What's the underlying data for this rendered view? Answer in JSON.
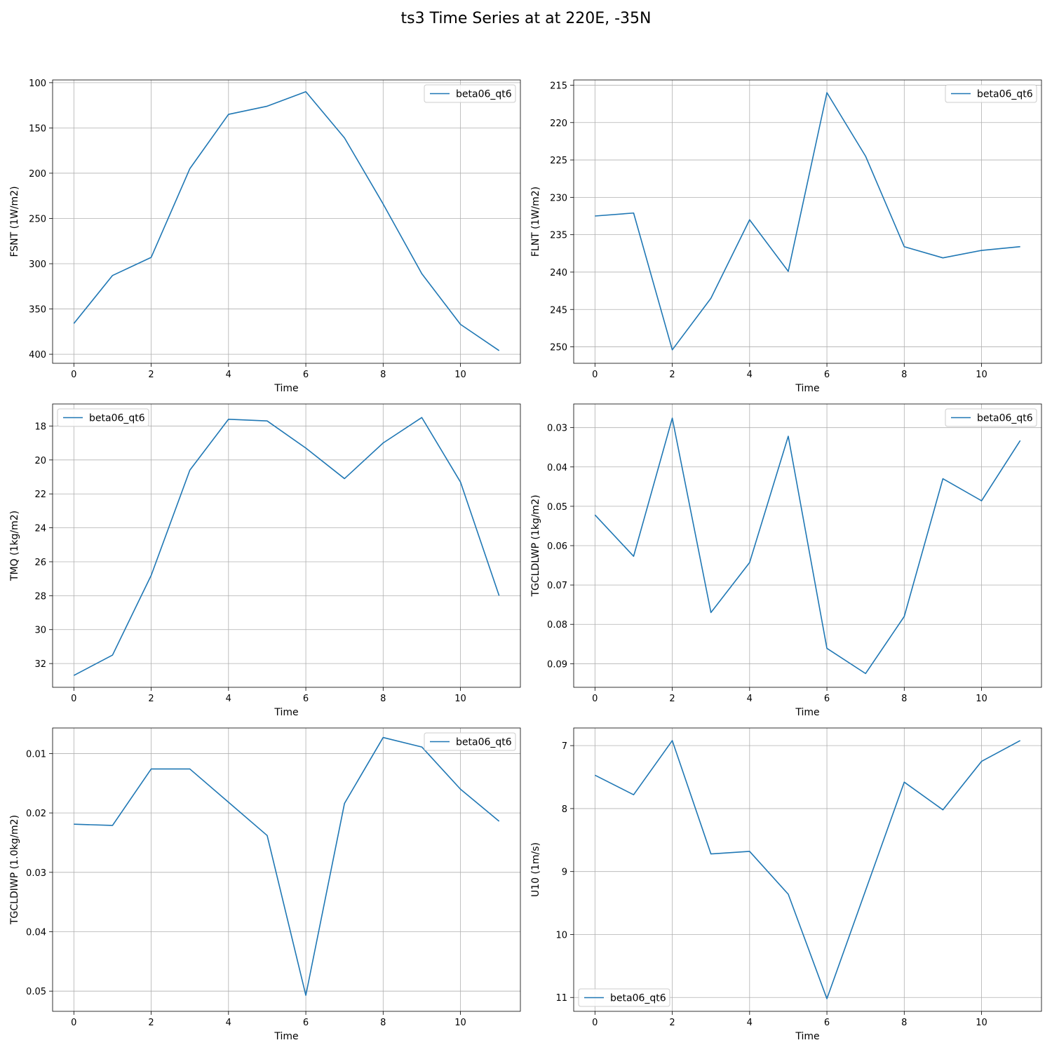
{
  "figure": {
    "title": "ts3 Time Series at at 220E, -35N"
  },
  "chart_data": [
    {
      "type": "line",
      "xlabel": "Time",
      "ylabel": "FSNT (1W/m2)",
      "x": [
        0,
        1,
        2,
        3,
        4,
        5,
        6,
        7,
        8,
        9,
        10,
        11
      ],
      "xticks": [
        0,
        2,
        4,
        6,
        8,
        10
      ],
      "xlim": [
        -0.55,
        11.55
      ],
      "yticks": [
        100,
        150,
        200,
        250,
        300,
        350,
        400
      ],
      "ylim": [
        97,
        410
      ],
      "y_inverted": true,
      "grid": true,
      "legend_loc": "upper right",
      "series": [
        {
          "name": "beta06_qt6",
          "color": "#1f77b4",
          "values": [
            366,
            313,
            293,
            195,
            135,
            126,
            110,
            161,
            234,
            311,
            367,
            396
          ]
        }
      ]
    },
    {
      "type": "line",
      "xlabel": "Time",
      "ylabel": "FLNT (1W/m2)",
      "x": [
        0,
        1,
        2,
        3,
        4,
        5,
        6,
        7,
        8,
        9,
        10,
        11
      ],
      "xticks": [
        0,
        2,
        4,
        6,
        8,
        10
      ],
      "xlim": [
        -0.55,
        11.55
      ],
      "yticks": [
        215,
        220,
        225,
        230,
        235,
        240,
        245,
        250
      ],
      "ylim": [
        214.3,
        252.2
      ],
      "y_inverted": true,
      "grid": true,
      "legend_loc": "upper right",
      "series": [
        {
          "name": "beta06_qt6",
          "color": "#1f77b4",
          "values": [
            232.5,
            232.1,
            250.4,
            243.5,
            233.0,
            239.9,
            216.0,
            224.5,
            236.6,
            238.1,
            237.1,
            236.6
          ]
        }
      ]
    },
    {
      "type": "line",
      "xlabel": "Time",
      "ylabel": "TMQ (1kg/m2)",
      "x": [
        0,
        1,
        2,
        3,
        4,
        5,
        6,
        7,
        8,
        9,
        10,
        11
      ],
      "xticks": [
        0,
        2,
        4,
        6,
        8,
        10
      ],
      "xlim": [
        -0.55,
        11.55
      ],
      "yticks": [
        18,
        20,
        22,
        24,
        26,
        28,
        30,
        32
      ],
      "ylim": [
        16.7,
        33.4
      ],
      "y_inverted": true,
      "grid": true,
      "legend_loc": "upper left",
      "series": [
        {
          "name": "beta06_qt6",
          "color": "#1f77b4",
          "values": [
            32.7,
            31.5,
            26.8,
            20.6,
            17.6,
            17.7,
            19.3,
            21.1,
            19.0,
            17.5,
            21.3,
            28.0
          ]
        }
      ]
    },
    {
      "type": "line",
      "xlabel": "Time",
      "ylabel": "TGCLDLWP (1kg/m2)",
      "x": [
        0,
        1,
        2,
        3,
        4,
        5,
        6,
        7,
        8,
        9,
        10,
        11
      ],
      "xticks": [
        0,
        2,
        4,
        6,
        8,
        10
      ],
      "xlim": [
        -0.55,
        11.55
      ],
      "yticks": [
        0.03,
        0.04,
        0.05,
        0.06,
        0.07,
        0.08,
        0.09
      ],
      "ylim": [
        0.024,
        0.096
      ],
      "y_inverted": true,
      "grid": true,
      "legend_loc": "upper right",
      "series": [
        {
          "name": "beta06_qt6",
          "color": "#1f77b4",
          "values": [
            0.0522,
            0.0627,
            0.0276,
            0.077,
            0.0643,
            0.0322,
            0.0861,
            0.0925,
            0.078,
            0.043,
            0.0486,
            0.0333
          ]
        }
      ]
    },
    {
      "type": "line",
      "xlabel": "Time",
      "ylabel": "TGCLDIWP (1.0kg/m2)",
      "x": [
        0,
        1,
        2,
        3,
        4,
        5,
        6,
        7,
        8,
        9,
        10,
        11
      ],
      "xticks": [
        0,
        2,
        4,
        6,
        8,
        10
      ],
      "xlim": [
        -0.55,
        11.55
      ],
      "yticks": [
        0.01,
        0.02,
        0.03,
        0.04,
        0.05
      ],
      "ylim": [
        0.0057,
        0.0534
      ],
      "y_inverted": true,
      "grid": true,
      "legend_loc": "upper right",
      "series": [
        {
          "name": "beta06_qt6",
          "color": "#1f77b4",
          "values": [
            0.0219,
            0.0221,
            0.0126,
            0.0126,
            0.0182,
            0.0238,
            0.0507,
            0.0184,
            0.0073,
            0.0089,
            0.016,
            0.0214
          ]
        }
      ]
    },
    {
      "type": "line",
      "xlabel": "Time",
      "ylabel": "U10 (1m/s)",
      "x": [
        0,
        1,
        2,
        3,
        4,
        5,
        6,
        7,
        8,
        9,
        10,
        11
      ],
      "xticks": [
        0,
        2,
        4,
        6,
        8,
        10
      ],
      "xlim": [
        -0.55,
        11.55
      ],
      "yticks": [
        7,
        8,
        9,
        10,
        11
      ],
      "ylim": [
        6.72,
        11.22
      ],
      "y_inverted": true,
      "grid": true,
      "legend_loc": "lower left",
      "series": [
        {
          "name": "beta06_qt6",
          "color": "#1f77b4",
          "values": [
            7.47,
            7.78,
            6.92,
            8.72,
            8.68,
            9.36,
            11.02,
            9.3,
            7.58,
            8.02,
            7.25,
            6.92
          ]
        }
      ]
    }
  ]
}
